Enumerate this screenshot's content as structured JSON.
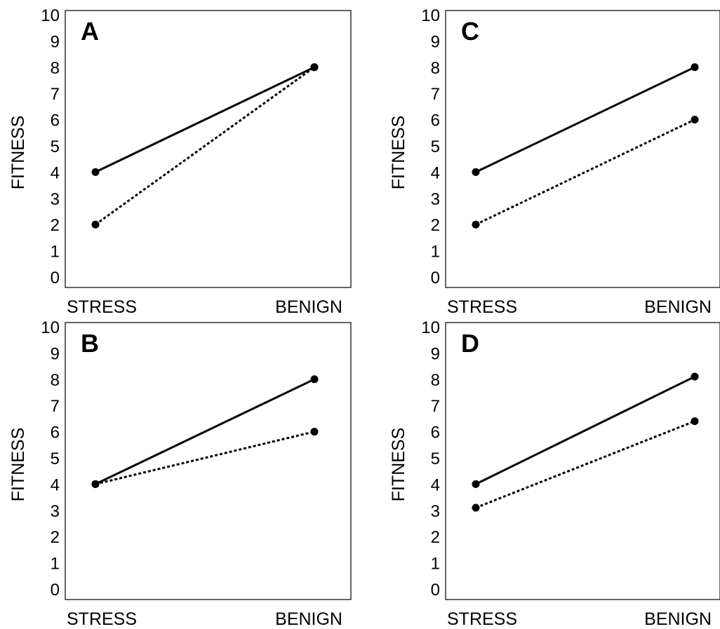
{
  "chart_data": [
    {
      "type": "line",
      "panel_label": "A",
      "categories": [
        "STRESS",
        "BENIGN"
      ],
      "ylabel": "FITNESS",
      "ylim": [
        0,
        10
      ],
      "yticks": [
        "0",
        "1",
        "2",
        "3",
        "4",
        "5",
        "6",
        "7",
        "8",
        "9",
        "10"
      ],
      "series": [
        {
          "style": "solid",
          "values": [
            4,
            8
          ]
        },
        {
          "style": "dotted",
          "values": [
            2,
            8
          ]
        }
      ]
    },
    {
      "type": "line",
      "panel_label": "B",
      "categories": [
        "STRESS",
        "BENIGN"
      ],
      "ylabel": "FITNESS",
      "ylim": [
        0,
        10
      ],
      "yticks": [
        "0",
        "1",
        "2",
        "3",
        "4",
        "5",
        "6",
        "7",
        "8",
        "9",
        "10"
      ],
      "series": [
        {
          "style": "solid",
          "values": [
            4,
            8
          ]
        },
        {
          "style": "dotted",
          "values": [
            4,
            6
          ]
        }
      ]
    },
    {
      "type": "line",
      "panel_label": "C",
      "categories": [
        "STRESS",
        "BENIGN"
      ],
      "ylabel": "FITNESS",
      "ylim": [
        0,
        10
      ],
      "yticks": [
        "0",
        "1",
        "2",
        "3",
        "4",
        "5",
        "6",
        "7",
        "8",
        "9",
        "10"
      ],
      "series": [
        {
          "style": "solid",
          "values": [
            4,
            8
          ]
        },
        {
          "style": "dotted",
          "values": [
            2,
            6
          ]
        }
      ]
    },
    {
      "type": "line",
      "panel_label": "D",
      "categories": [
        "STRESS",
        "BENIGN"
      ],
      "ylabel": "FITNESS",
      "ylim": [
        0,
        10
      ],
      "yticks": [
        "0",
        "1",
        "2",
        "3",
        "4",
        "5",
        "6",
        "7",
        "8",
        "9",
        "10"
      ],
      "series": [
        {
          "style": "solid",
          "values": [
            4,
            8.1
          ]
        },
        {
          "style": "dotted",
          "values": [
            3.1,
            6.4
          ]
        }
      ]
    }
  ]
}
